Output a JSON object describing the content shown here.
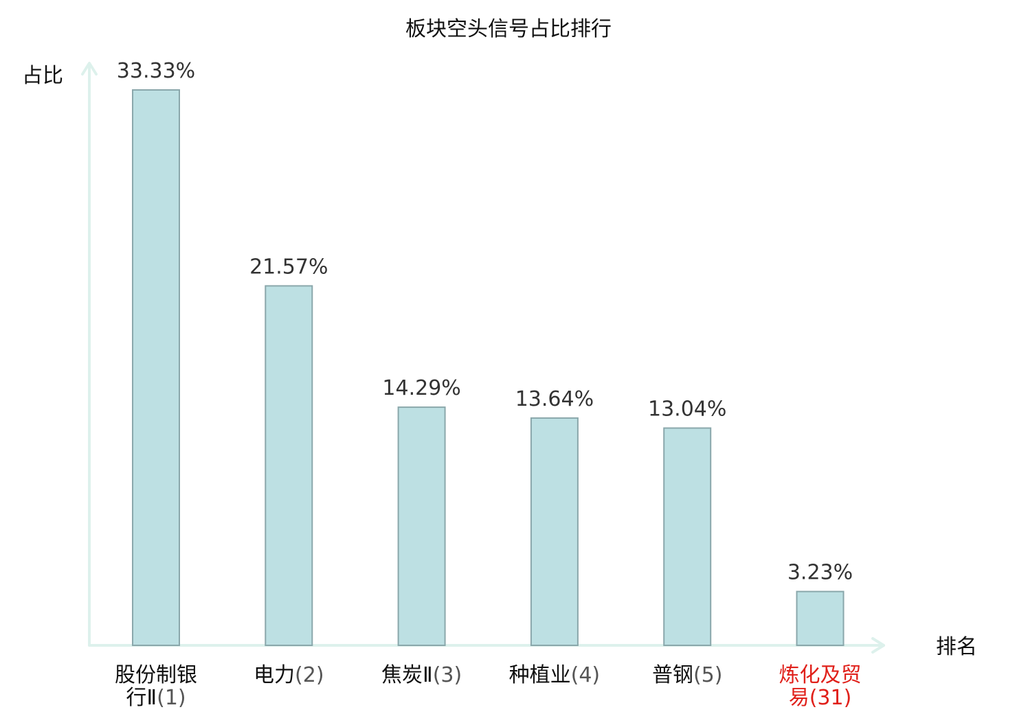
{
  "chart_data": {
    "type": "bar",
    "title": "板块空头信号占比排行",
    "ylabel": "占比",
    "xlabel": "排名",
    "categories": [
      {
        "name_lines": [
          "股份制银",
          "行Ⅱ"
        ],
        "rank": "(1)",
        "highlight": false
      },
      {
        "name_lines": [
          "电力"
        ],
        "rank": "(2)",
        "highlight": false
      },
      {
        "name_lines": [
          "焦炭Ⅱ"
        ],
        "rank": "(3)",
        "highlight": false
      },
      {
        "name_lines": [
          "种植业"
        ],
        "rank": "(4)",
        "highlight": false
      },
      {
        "name_lines": [
          "普钢"
        ],
        "rank": "(5)",
        "highlight": false
      },
      {
        "name_lines": [
          "炼化及贸",
          "易"
        ],
        "rank": "(31)",
        "highlight": true
      }
    ],
    "values": [
      33.33,
      21.57,
      14.29,
      13.64,
      13.04,
      3.23
    ],
    "value_labels": [
      "33.33%",
      "21.57%",
      "14.29%",
      "13.64%",
      "13.04%",
      "3.23%"
    ],
    "ylim": [
      0,
      33.33
    ],
    "grid": false,
    "legend": "none",
    "colors": {
      "bar_fill": "#bde0e3",
      "bar_stroke": "#8aa7ab",
      "axis": "#ddf1ec",
      "label": "#111111",
      "rank": "#555555",
      "highlight": "#e0201a"
    }
  }
}
